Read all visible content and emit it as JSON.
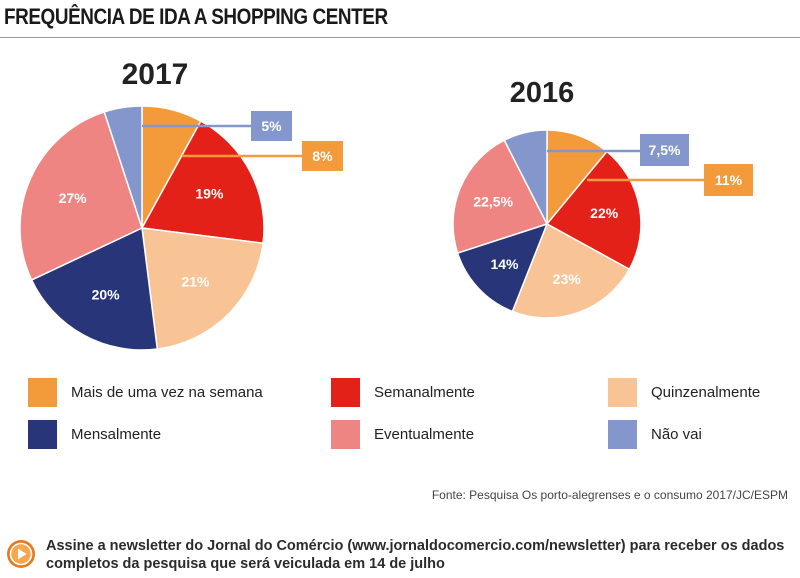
{
  "header": {
    "title": "FREQUÊNCIA DE IDA A SHOPPING CENTER"
  },
  "chart_data": [
    {
      "type": "pie",
      "title": "2017",
      "series": [
        {
          "category": "Mais de uma vez na semana",
          "value": 8,
          "label": "8%"
        },
        {
          "category": "Semanalmente",
          "value": 19,
          "label": "19%"
        },
        {
          "category": "Quinzenalmente",
          "value": 21,
          "label": "21%"
        },
        {
          "category": "Mensalmente",
          "value": 20,
          "label": "20%"
        },
        {
          "category": "Eventualmente",
          "value": 27,
          "label": "27%"
        },
        {
          "category": "Não vai",
          "value": 5,
          "label": "5%"
        }
      ]
    },
    {
      "type": "pie",
      "title": "2016",
      "series": [
        {
          "category": "Mais de uma vez na semana",
          "value": 11,
          "label": "11%"
        },
        {
          "category": "Semanalmente",
          "value": 22,
          "label": "22%"
        },
        {
          "category": "Quinzenalmente",
          "value": 23,
          "label": "23%"
        },
        {
          "category": "Mensalmente",
          "value": 14,
          "label": "14%"
        },
        {
          "category": "Eventualmente",
          "value": 22.5,
          "label": "22,5%"
        },
        {
          "category": "Não vai",
          "value": 7.5,
          "label": "7,5%"
        }
      ]
    }
  ],
  "legend": {
    "items": [
      {
        "label": "Mais de uma vez na semana",
        "color": "#f39a3a"
      },
      {
        "label": "Semanalmente",
        "color": "#e32119"
      },
      {
        "label": "Quinzenalmente",
        "color": "#f9c495"
      },
      {
        "label": "Mensalmente",
        "color": "#283578"
      },
      {
        "label": "Eventualmente",
        "color": "#ef8582"
      },
      {
        "label": "Não vai",
        "color": "#8397cc"
      }
    ]
  },
  "source": "Fonte: Pesquisa Os porto-alegrenses e o consumo 2017/JC/ESPM",
  "cta": {
    "text": "Assine a newsletter do Jornal do Comércio (www.jornaldocomercio.com/newsletter) para receber os dados completos da pesquisa que será veiculada em 14 de julho",
    "button_icon": "play-icon"
  }
}
